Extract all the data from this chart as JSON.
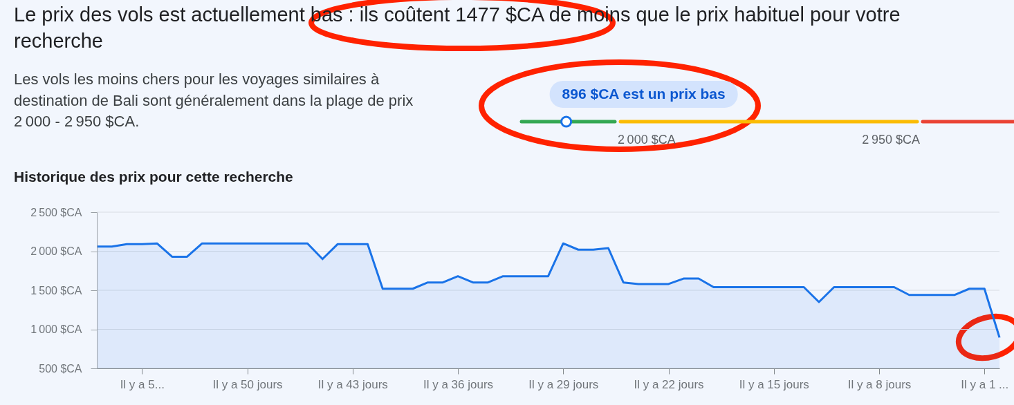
{
  "chart_data": [
    {
      "type": "other",
      "title": "Le prix des vols est actuellement bas : ils coûtent 1477 $CA de moins que le prix habituel pour votre recherche",
      "subtitle": "Les vols les moins chers pour les voyages similaires à destination de Bali sont généralement dans la plage de prix 2 000 - 2 950 $CA.",
      "annotations": [
        "896 $CA est un prix bas",
        "2 000 $CA",
        "2 950 $CA"
      ],
      "colors": [
        "#34a853",
        "#fbbc04",
        "#ea4335"
      ]
    },
    {
      "type": "area",
      "title": "Historique des prix pour cette recherche",
      "categories": [
        null,
        null,
        null,
        "Il y a 5...",
        null,
        null,
        null,
        null,
        null,
        null,
        "Il y a 50 jours",
        null,
        null,
        null,
        null,
        null,
        null,
        "Il y a 43 jours",
        null,
        null,
        null,
        null,
        null,
        null,
        "Il y a 36 jours",
        null,
        null,
        null,
        null,
        null,
        null,
        "Il y a 29 jours",
        null,
        null,
        null,
        null,
        null,
        null,
        "Il y a 22 jours",
        null,
        null,
        null,
        null,
        null,
        null,
        "Il y a 15 jours",
        null,
        null,
        null,
        null,
        null,
        null,
        "Il y a 8 jours",
        null,
        null,
        null,
        null,
        null,
        null,
        "Il y a 1 ...",
        null
      ],
      "series": [
        {
          "color": "#1a73e8",
          "values": [
            2060,
            2060,
            2090,
            2090,
            2100,
            1930,
            1930,
            2100,
            2100,
            2100,
            2100,
            2100,
            2100,
            2100,
            2100,
            1900,
            2090,
            2090,
            2090,
            1520,
            1520,
            1520,
            1600,
            1600,
            1680,
            1600,
            1600,
            1680,
            1680,
            1680,
            1680,
            2100,
            2020,
            2020,
            2040,
            1600,
            1580,
            1580,
            1580,
            1650,
            1650,
            1540,
            1540,
            1540,
            1540,
            1540,
            1540,
            1540,
            1350,
            1540,
            1540,
            1540,
            1540,
            1540,
            1440,
            1440,
            1440,
            1440,
            1520,
            1520,
            896
          ]
        }
      ],
      "ylim": [
        500,
        2500
      ],
      "yticks": [
        {
          "value": 500,
          "label": "500 $CA"
        },
        {
          "value": 1000,
          "label": "1 000 $CA"
        },
        {
          "value": 1500,
          "label": "1 500 $CA"
        },
        {
          "value": 2000,
          "label": "2 000 $CA"
        },
        {
          "value": 2500,
          "label": "2 500 $CA"
        }
      ],
      "grid": "y"
    }
  ]
}
